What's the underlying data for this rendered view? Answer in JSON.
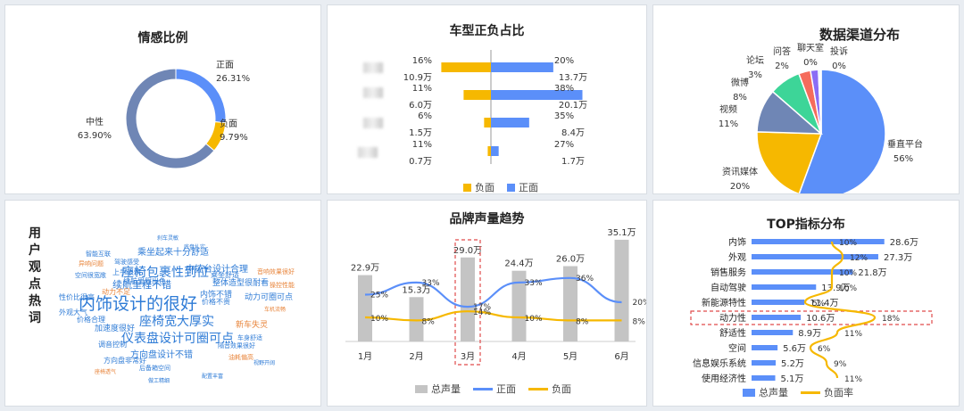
{
  "colors": {
    "blue": "#5b8ff9",
    "gold": "#f6b800",
    "grey": "#c4c4c4",
    "pie_blue": "#5b8ff9",
    "pie_gold": "#f6b800",
    "pie_slate": "#6f86b5",
    "pie_teal": "#3dd598",
    "pie_red": "#f56c5c",
    "pie_purple": "#8a6cf5"
  },
  "panels": {
    "sentiment": {
      "title": "情感比例"
    },
    "model": {
      "title": "车型正负占比",
      "legend_neg": "负面",
      "legend_pos": "正面"
    },
    "channel": {
      "title": "数据渠道分布"
    },
    "cloud": {
      "title": "用户观点热词"
    },
    "trend": {
      "title": "品牌声量趋势",
      "legend_total": "总声量",
      "legend_pos": "正面",
      "legend_neg": "负面"
    },
    "top": {
      "title": "TOP指标分布",
      "legend_total": "总声量",
      "legend_rate": "负面率"
    }
  },
  "chart_data": [
    {
      "id": "sentiment",
      "type": "pie",
      "title": "情感比例",
      "slices": [
        {
          "label": "正面",
          "value": 26.31,
          "text": "26.31%"
        },
        {
          "label": "负面",
          "value": 9.79,
          "text": "9.79%"
        },
        {
          "label": "中性",
          "value": 63.9,
          "text": "63.90%"
        }
      ]
    },
    {
      "id": "model",
      "type": "bar",
      "title": "车型正负占比",
      "categories_blurred": true,
      "series": [
        {
          "name": "负面",
          "pct": [
            "16%",
            "11%",
            "6%",
            "11%"
          ],
          "counts": [
            "10.9万",
            "6.0万",
            "1.5万",
            "0.7万"
          ],
          "values": [
            10.9,
            6.0,
            1.5,
            0.7
          ]
        },
        {
          "name": "正面",
          "pct": [
            "20%",
            "38%",
            "35%",
            "27%"
          ],
          "counts": [
            "13.7万",
            "20.1万",
            "8.4万",
            "1.7万"
          ],
          "values": [
            13.7,
            20.1,
            8.4,
            1.7
          ]
        }
      ]
    },
    {
      "id": "channel",
      "type": "pie",
      "title": "数据渠道分布",
      "slices": [
        {
          "label": "垂直平台",
          "value": 56,
          "text": "56%"
        },
        {
          "label": "资讯媒体",
          "value": 20,
          "text": "20%"
        },
        {
          "label": "视频",
          "value": 11,
          "text": "11%"
        },
        {
          "label": "微博",
          "value": 8,
          "text": "8%"
        },
        {
          "label": "论坛",
          "value": 3,
          "text": "3%"
        },
        {
          "label": "问答",
          "value": 2,
          "text": "2%"
        },
        {
          "label": "聊天室",
          "value": 0.4,
          "text": "0%"
        },
        {
          "label": "投诉",
          "value": 0.3,
          "text": "0%"
        }
      ]
    },
    {
      "id": "trend",
      "type": "bar",
      "title": "品牌声量趋势",
      "categories": [
        "1月",
        "2月",
        "3月",
        "4月",
        "5月",
        "6月"
      ],
      "series": [
        {
          "name": "总声量",
          "values": [
            22.9,
            15.3,
            29.0,
            24.4,
            26.0,
            35.1
          ],
          "labels": [
            "22.9万",
            "15.3万",
            "29.0万",
            "24.4万",
            "26.0万",
            "35.1万"
          ]
        },
        {
          "name": "正面",
          "values": [
            25,
            33,
            17,
            33,
            36,
            20
          ],
          "labels": [
            "25%",
            "33%",
            "17%",
            "33%",
            "36%",
            "20%"
          ]
        },
        {
          "name": "负面",
          "values": [
            10,
            8,
            14,
            10,
            8,
            8
          ],
          "labels": [
            "10%",
            "8%",
            "14%",
            "10%",
            "8%",
            "8%"
          ]
        }
      ],
      "highlight": "3月"
    },
    {
      "id": "top",
      "type": "bar",
      "title": "TOP指标分布",
      "categories": [
        "内饰",
        "外观",
        "销售服务",
        "自动驾驶",
        "新能源特性",
        "动力性",
        "舒适性",
        "空间",
        "信息娱乐系统",
        "使用经济性"
      ],
      "series": [
        {
          "name": "总声量",
          "values": [
            28.6,
            27.3,
            21.8,
            13.9,
            11.4,
            10.6,
            8.9,
            5.6,
            5.2,
            5.1
          ],
          "labels": [
            "28.6万",
            "27.3万",
            "21.8万",
            "13.9万",
            "11.4万",
            "10.6万",
            "8.9万",
            "5.6万",
            "5.2万",
            "5.1万"
          ]
        },
        {
          "name": "负面率",
          "values": [
            10,
            12,
            10,
            10,
            5,
            18,
            11,
            6,
            9,
            11
          ],
          "labels": [
            "10%",
            "12%",
            "10%",
            "10%",
            "5%",
            "18%",
            "11%",
            "6%",
            "9%",
            "11%"
          ]
        }
      ],
      "highlight": "动力性"
    }
  ],
  "wordcloud": {
    "words": [
      {
        "t": "内饰设计的很好",
        "c": "#2e7bd6"
      },
      {
        "t": "座椅包裹性到位",
        "c": "#2e7bd6"
      },
      {
        "t": "座椅宽大厚实",
        "c": "#2e7bd6"
      },
      {
        "t": "仪表盘设计可圈可点",
        "c": "#2e7bd6"
      },
      {
        "t": "续航里程不错",
        "c": "#2e7bd6"
      },
      {
        "t": "方向盘设计不错",
        "c": "#2e7bd6"
      },
      {
        "t": "乘坐起来十分舒适",
        "c": "#2e7bd6"
      },
      {
        "t": "中控台设计合理",
        "c": "#2e7bd6"
      },
      {
        "t": "加速度很好",
        "c": "#2e7bd6"
      },
      {
        "t": "内饰不错",
        "c": "#2e7bd6"
      },
      {
        "t": "整体造型很耐看",
        "c": "#2e7bd6"
      },
      {
        "t": "动力可圈可点",
        "c": "#2e7bd6"
      },
      {
        "t": "新车失灵",
        "c": "#e8843a"
      },
      {
        "t": "动力不足",
        "c": "#e8843a"
      },
      {
        "t": "性价比很高",
        "c": "#2e7bd6"
      },
      {
        "t": "价格合理",
        "c": "#2e7bd6"
      },
      {
        "t": "外观大气",
        "c": "#2e7bd6"
      },
      {
        "t": "乘坐舒适",
        "c": "#2e7bd6"
      },
      {
        "t": "价格不贵",
        "c": "#2e7bd6"
      },
      {
        "t": "方向盘非常好",
        "c": "#2e7bd6"
      },
      {
        "t": "续航里程出色",
        "c": "#2e7bd6"
      },
      {
        "t": "上手很快",
        "c": "#2e7bd6"
      },
      {
        "t": "调音控制",
        "c": "#2e7bd6"
      },
      {
        "t": "车身舒适",
        "c": "#2e7bd6"
      },
      {
        "t": "空间很宽敞",
        "c": "#2e7bd6"
      },
      {
        "t": "音响效果很好",
        "c": "#e8843a"
      },
      {
        "t": "隔音效果很好",
        "c": "#2e7bd6"
      },
      {
        "t": "操控性能",
        "c": "#e8843a"
      },
      {
        "t": "异响问题",
        "c": "#e8843a"
      },
      {
        "t": "驾驶感受",
        "c": "#2e7bd6"
      },
      {
        "t": "智能互联",
        "c": "#2e7bd6"
      },
      {
        "t": "后备箱空间",
        "c": "#2e7bd6"
      },
      {
        "t": "油耗偏高",
        "c": "#e8843a"
      },
      {
        "t": "刹车灵敏",
        "c": "#2e7bd6"
      },
      {
        "t": "底盘扎实",
        "c": "#2e7bd6"
      },
      {
        "t": "视野开阔",
        "c": "#2e7bd6"
      },
      {
        "t": "座椅透气",
        "c": "#e8843a"
      },
      {
        "t": "做工精细",
        "c": "#2e7bd6"
      },
      {
        "t": "配置丰富",
        "c": "#2e7bd6"
      },
      {
        "t": "车机流畅",
        "c": "#e8843a"
      }
    ]
  }
}
